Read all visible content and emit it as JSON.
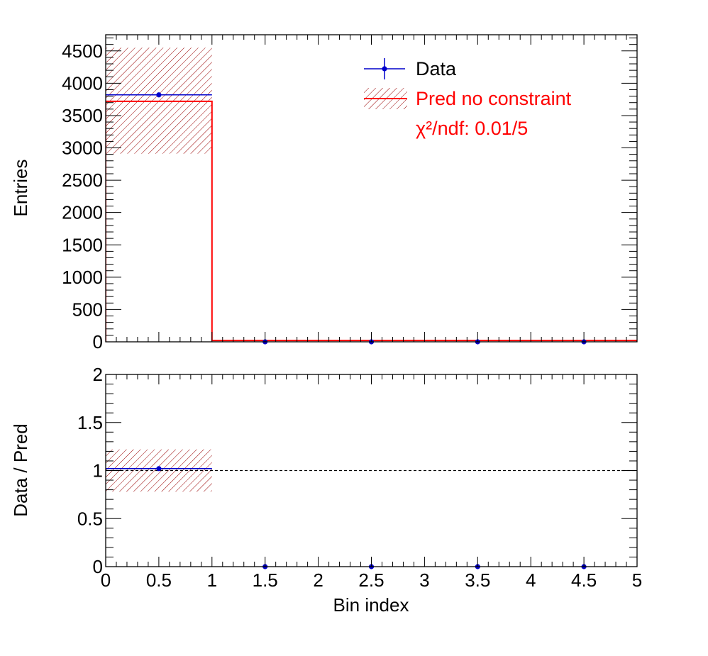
{
  "colors": {
    "data": "#0000cc",
    "pred": "#ff0000",
    "hatch": "#990000",
    "axis": "#000000",
    "reference": "#000000"
  },
  "chart_data": [
    {
      "type": "bar",
      "panel": "main",
      "ylabel": "Entries",
      "xlim": [
        0,
        5
      ],
      "ylim": [
        0,
        4750
      ],
      "yticks": [
        0,
        500,
        1000,
        1500,
        2000,
        2500,
        3000,
        3500,
        4000,
        4500
      ],
      "bin_edges": [
        0,
        1,
        2,
        3,
        4,
        5
      ],
      "series": [
        {
          "name": "Data",
          "style": "points-with-errors",
          "x": [
            0.5,
            1.5,
            2.5,
            3.5,
            4.5
          ],
          "values": [
            3820,
            0,
            0,
            0,
            0
          ]
        },
        {
          "name": "Pred no constraint",
          "style": "step-histogram-with-hatched-band",
          "values": [
            3720,
            20,
            20,
            20,
            20
          ],
          "band_low": [
            2910,
            20,
            20,
            20,
            20
          ],
          "band_high": [
            4550,
            20,
            20,
            20,
            20
          ]
        }
      ],
      "legend": {
        "placement": "top-right",
        "entries": [
          "Data",
          "Pred no constraint"
        ],
        "annotation": "χ²/ndf: 0.01/5"
      }
    },
    {
      "type": "scatter",
      "panel": "ratio",
      "xlabel": "Bin index",
      "ylabel": "Data / Pred",
      "xlim": [
        0,
        5
      ],
      "ylim": [
        0,
        2
      ],
      "xticks": [
        "0",
        "0.5",
        "1",
        "1.5",
        "2",
        "2.5",
        "3",
        "3.5",
        "4",
        "4.5",
        "5"
      ],
      "yticks": [
        "0",
        "0.5",
        "1",
        "1.5",
        "2"
      ],
      "reference_line": 1,
      "series": [
        {
          "name": "Data / Pred",
          "x": [
            0.5,
            1.5,
            2.5,
            3.5,
            4.5
          ],
          "values": [
            1.02,
            0,
            0,
            0,
            0
          ]
        }
      ],
      "band": {
        "x_range": [
          0,
          1
        ],
        "low": 0.78,
        "high": 1.22
      }
    }
  ]
}
